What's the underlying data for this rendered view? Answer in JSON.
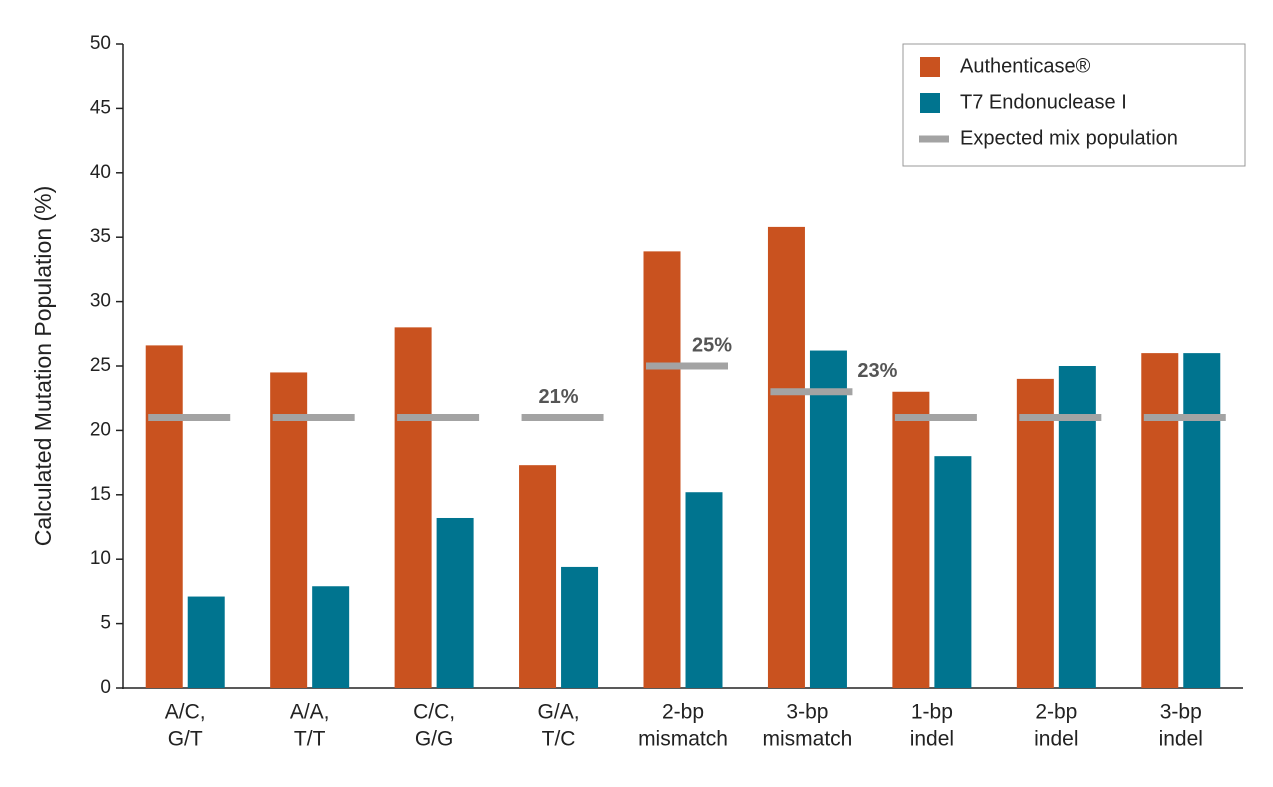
{
  "chart_data": {
    "type": "bar",
    "y_label": "Calculated Mutation Population (%)",
    "categories": [
      [
        "A/C,",
        "G/T"
      ],
      [
        "A/A,",
        "T/T"
      ],
      [
        "C/C,",
        "G/G"
      ],
      [
        "G/A,",
        "T/C"
      ],
      [
        "2-bp",
        "mismatch"
      ],
      [
        "3-bp",
        "mismatch"
      ],
      [
        "1-bp",
        "indel"
      ],
      [
        "2-bp",
        "indel"
      ],
      [
        "3-bp",
        "indel"
      ]
    ],
    "series": [
      {
        "name": "Authenticase®",
        "color": "#c9521f",
        "mark": "bar",
        "values": [
          26.6,
          24.5,
          28,
          17.3,
          33.9,
          35.8,
          23,
          24,
          26
        ]
      },
      {
        "name": "T7 Endonuclease I",
        "color": "#00748f",
        "mark": "bar",
        "values": [
          7.1,
          7.9,
          13.2,
          9.4,
          15.2,
          26.2,
          18,
          25,
          26
        ]
      },
      {
        "name": "Expected mix population",
        "color": "#a3a3a3",
        "mark": "hline",
        "values": [
          21,
          21,
          21,
          21,
          25,
          23,
          21,
          21,
          21
        ],
        "value_labels": [
          null,
          null,
          null,
          "21%",
          "25%",
          "23%",
          null,
          null,
          null
        ]
      }
    ],
    "ylim": [
      0,
      50
    ],
    "yticks": [
      0,
      5,
      10,
      15,
      20,
      25,
      30,
      35,
      40,
      45,
      50
    ],
    "legend": "top-right"
  }
}
